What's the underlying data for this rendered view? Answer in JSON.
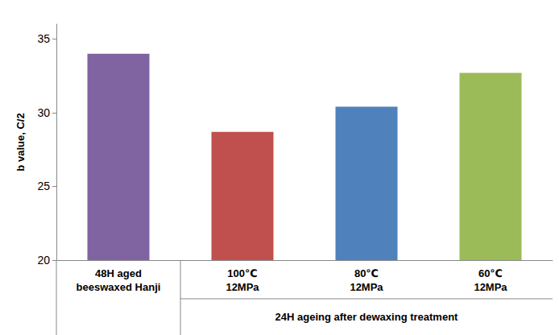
{
  "chart_data": {
    "type": "bar",
    "y_label": "b value, C/2",
    "categories": [
      "48H aged\nbeeswaxed Hanji",
      "100℃\n12MPa",
      "80℃\n12MPa",
      "60℃\n12MPa"
    ],
    "values": [
      34.0,
      28.7,
      30.4,
      32.7
    ],
    "colors": [
      "#8064A2",
      "#C0504D",
      "#4F81BD",
      "#9BBB59"
    ],
    "ylim": [
      20,
      36
    ],
    "yticks": [
      20,
      25,
      30,
      35
    ],
    "grid": false,
    "annotations": [
      "24H ageing after dewaxing treatment"
    ]
  }
}
